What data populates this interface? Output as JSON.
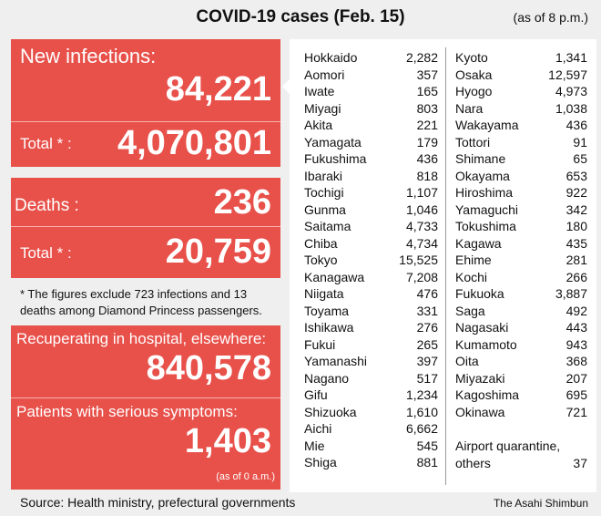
{
  "header": {
    "title": "COVID-19 cases (Feb. 15)",
    "as_of": "(as of 8 p.m.)"
  },
  "summary": {
    "new_infections": {
      "label": "New infections:",
      "value": "84,221",
      "total_label": "Total * :",
      "total": "4,070,801"
    },
    "deaths": {
      "label": "Deaths :",
      "value": "236",
      "total_label": "Total * :",
      "total": "20,759"
    },
    "note": [
      "* The figures exclude 723 infections and 13",
      "deaths among Diamond Princess passengers."
    ],
    "recuperating": {
      "label": "Recuperating in hospital, elsewhere:",
      "value": "840,578"
    },
    "serious": {
      "label": "Patients with serious symptoms:",
      "value": "1,403",
      "as_of": "(as of 0 a.m.)"
    }
  },
  "prefectures": {
    "columns": [
      [
        [
          "Hokkaido",
          "2,282"
        ],
        [
          "Aomori",
          "357"
        ],
        [
          "Iwate",
          "165"
        ],
        [
          "Miyagi",
          "803"
        ],
        [
          "Akita",
          "221"
        ],
        [
          "Yamagata",
          "179"
        ],
        [
          "Fukushima",
          "436"
        ],
        [
          "Ibaraki",
          "818"
        ],
        [
          "Tochigi",
          "1,107"
        ],
        [
          "Gunma",
          "1,046"
        ],
        [
          "Saitama",
          "4,733"
        ],
        [
          "Chiba",
          "4,734"
        ],
        [
          "Tokyo",
          "15,525"
        ],
        [
          "Kanagawa",
          "7,208"
        ],
        [
          "Niigata",
          "476"
        ],
        [
          "Toyama",
          "331"
        ],
        [
          "Ishikawa",
          "276"
        ],
        [
          "Fukui",
          "265"
        ],
        [
          "Yamanashi",
          "397"
        ],
        [
          "Nagano",
          "517"
        ],
        [
          "Gifu",
          "1,234"
        ],
        [
          "Shizuoka",
          "1,610"
        ],
        [
          "Aichi",
          "6,662"
        ],
        [
          "Mie",
          "545"
        ],
        [
          "Shiga",
          "881"
        ]
      ],
      [
        [
          "Kyoto",
          "1,341"
        ],
        [
          "Osaka",
          "12,597"
        ],
        [
          "Hyogo",
          "4,973"
        ],
        [
          "Nara",
          "1,038"
        ],
        [
          "Wakayama",
          "436"
        ],
        [
          "Tottori",
          "91"
        ],
        [
          "Shimane",
          "65"
        ],
        [
          "Okayama",
          "653"
        ],
        [
          "Hiroshima",
          "922"
        ],
        [
          "Yamaguchi",
          "342"
        ],
        [
          "Tokushima",
          "180"
        ],
        [
          "Kagawa",
          "435"
        ],
        [
          "Ehime",
          "281"
        ],
        [
          "Kochi",
          "266"
        ],
        [
          "Fukuoka",
          "3,887"
        ],
        [
          "Saga",
          "492"
        ],
        [
          "Nagasaki",
          "443"
        ],
        [
          "Kumamoto",
          "943"
        ],
        [
          "Oita",
          "368"
        ],
        [
          "Miyazaki",
          "207"
        ],
        [
          "Kagoshima",
          "695"
        ],
        [
          "Okinawa",
          "721"
        ]
      ]
    ],
    "other": {
      "label": [
        "Airport quarantine,",
        "others"
      ],
      "value": "37"
    }
  },
  "footer": {
    "source": "Source: Health ministry, prefectural governments",
    "credit": "The Asahi Shimbun"
  }
}
